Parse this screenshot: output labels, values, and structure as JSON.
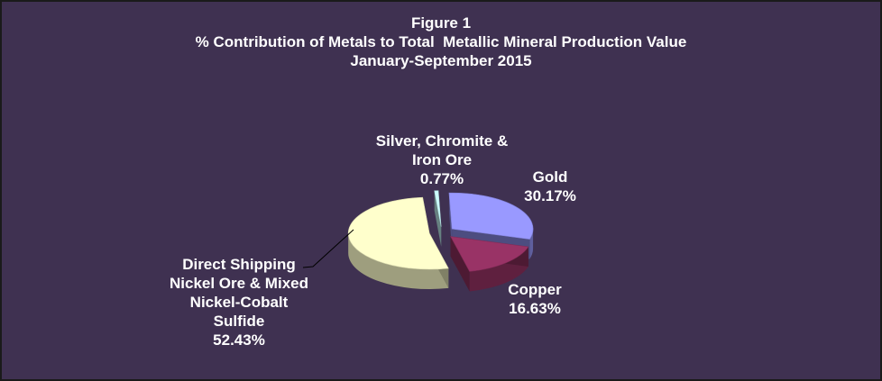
{
  "chart_data": {
    "type": "pie",
    "title": "Figure 1",
    "subtitle": "% Contribution of Metals to Total  Metallic Mineral Production Value",
    "period": "January-September 2015",
    "slices": [
      {
        "label": "Gold",
        "value": 30.17,
        "value_label": "30.17%",
        "color": "#9999ff"
      },
      {
        "label": "Copper",
        "value": 16.63,
        "value_label": "16.63%",
        "color": "#993366"
      },
      {
        "label": "Direct Shipping Nickel Ore & Mixed Nickel-Cobalt Sulfide",
        "value": 52.43,
        "value_label": "52.43%",
        "color": "#ffffcc"
      },
      {
        "label": "Silver, Chromite & Iron Ore",
        "value": 0.77,
        "value_label": "0.77%",
        "color": "#ccffff"
      }
    ],
    "label_lines": {
      "Gold": [
        "Gold"
      ],
      "Copper": [
        "Copper"
      ],
      "Direct Shipping Nickel Ore & Mixed Nickel-Cobalt Sulfide": [
        "Direct Shipping",
        "Nickel Ore & Mixed",
        "Nickel-Cobalt",
        "Sulfide"
      ],
      "Silver, Chromite & Iron Ore": [
        "Silver, Chromite &",
        "Iron Ore"
      ]
    },
    "exploded": true,
    "legend": "none",
    "background": "#3f3151",
    "text_color": "#ffffff"
  }
}
